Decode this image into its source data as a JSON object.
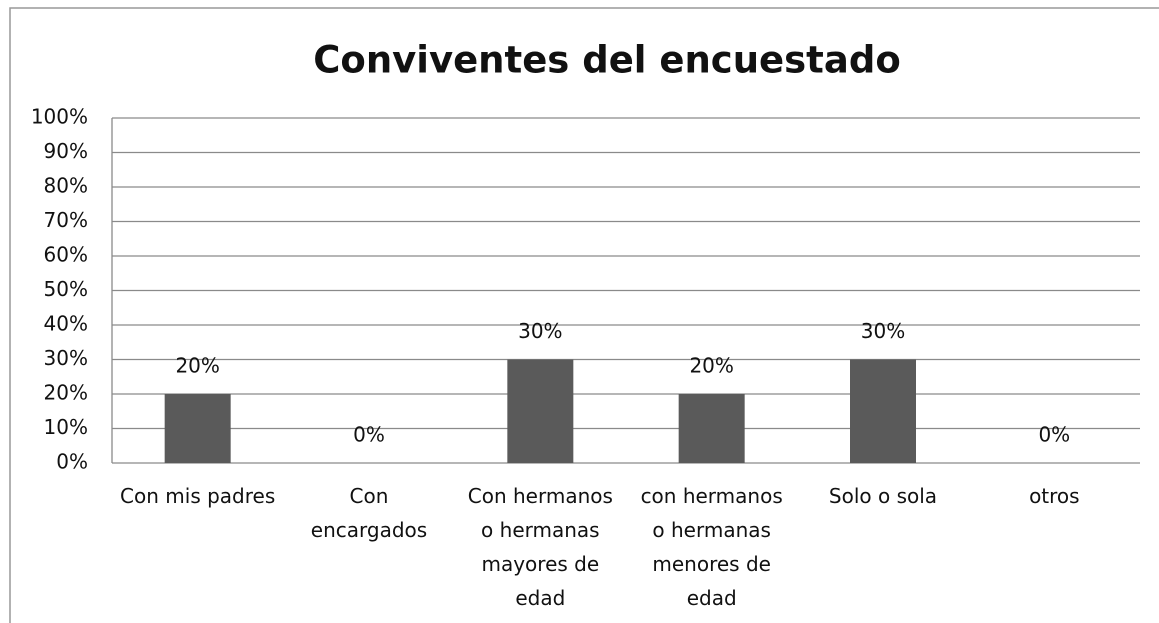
{
  "chart_data": {
    "type": "bar",
    "title": "Conviventes del encuestado",
    "categories": [
      "Con mis padres",
      "Con encargados",
      "Con hermanos o hermanas mayores de edad",
      "con hermanos o hermanas menores de edad",
      "Solo o sola",
      "otros"
    ],
    "values": [
      20,
      0,
      30,
      20,
      30,
      0
    ],
    "value_labels": [
      "20%",
      "0%",
      "30%",
      "20%",
      "30%",
      "0%"
    ],
    "color": "#5a5a5a",
    "ylim": [
      0,
      100
    ],
    "yticks": [
      {
        "value": 0,
        "label": "0%"
      },
      {
        "value": 10,
        "label": "10%"
      },
      {
        "value": 20,
        "label": "20%"
      },
      {
        "value": 30,
        "label": "30%"
      },
      {
        "value": 40,
        "label": "40%"
      },
      {
        "value": 50,
        "label": "50%"
      },
      {
        "value": 60,
        "label": "60%"
      },
      {
        "value": 70,
        "label": "70%"
      },
      {
        "value": 80,
        "label": "80%"
      },
      {
        "value": 90,
        "label": "90%"
      },
      {
        "value": 100,
        "label": "100%"
      }
    ],
    "grid": true
  }
}
